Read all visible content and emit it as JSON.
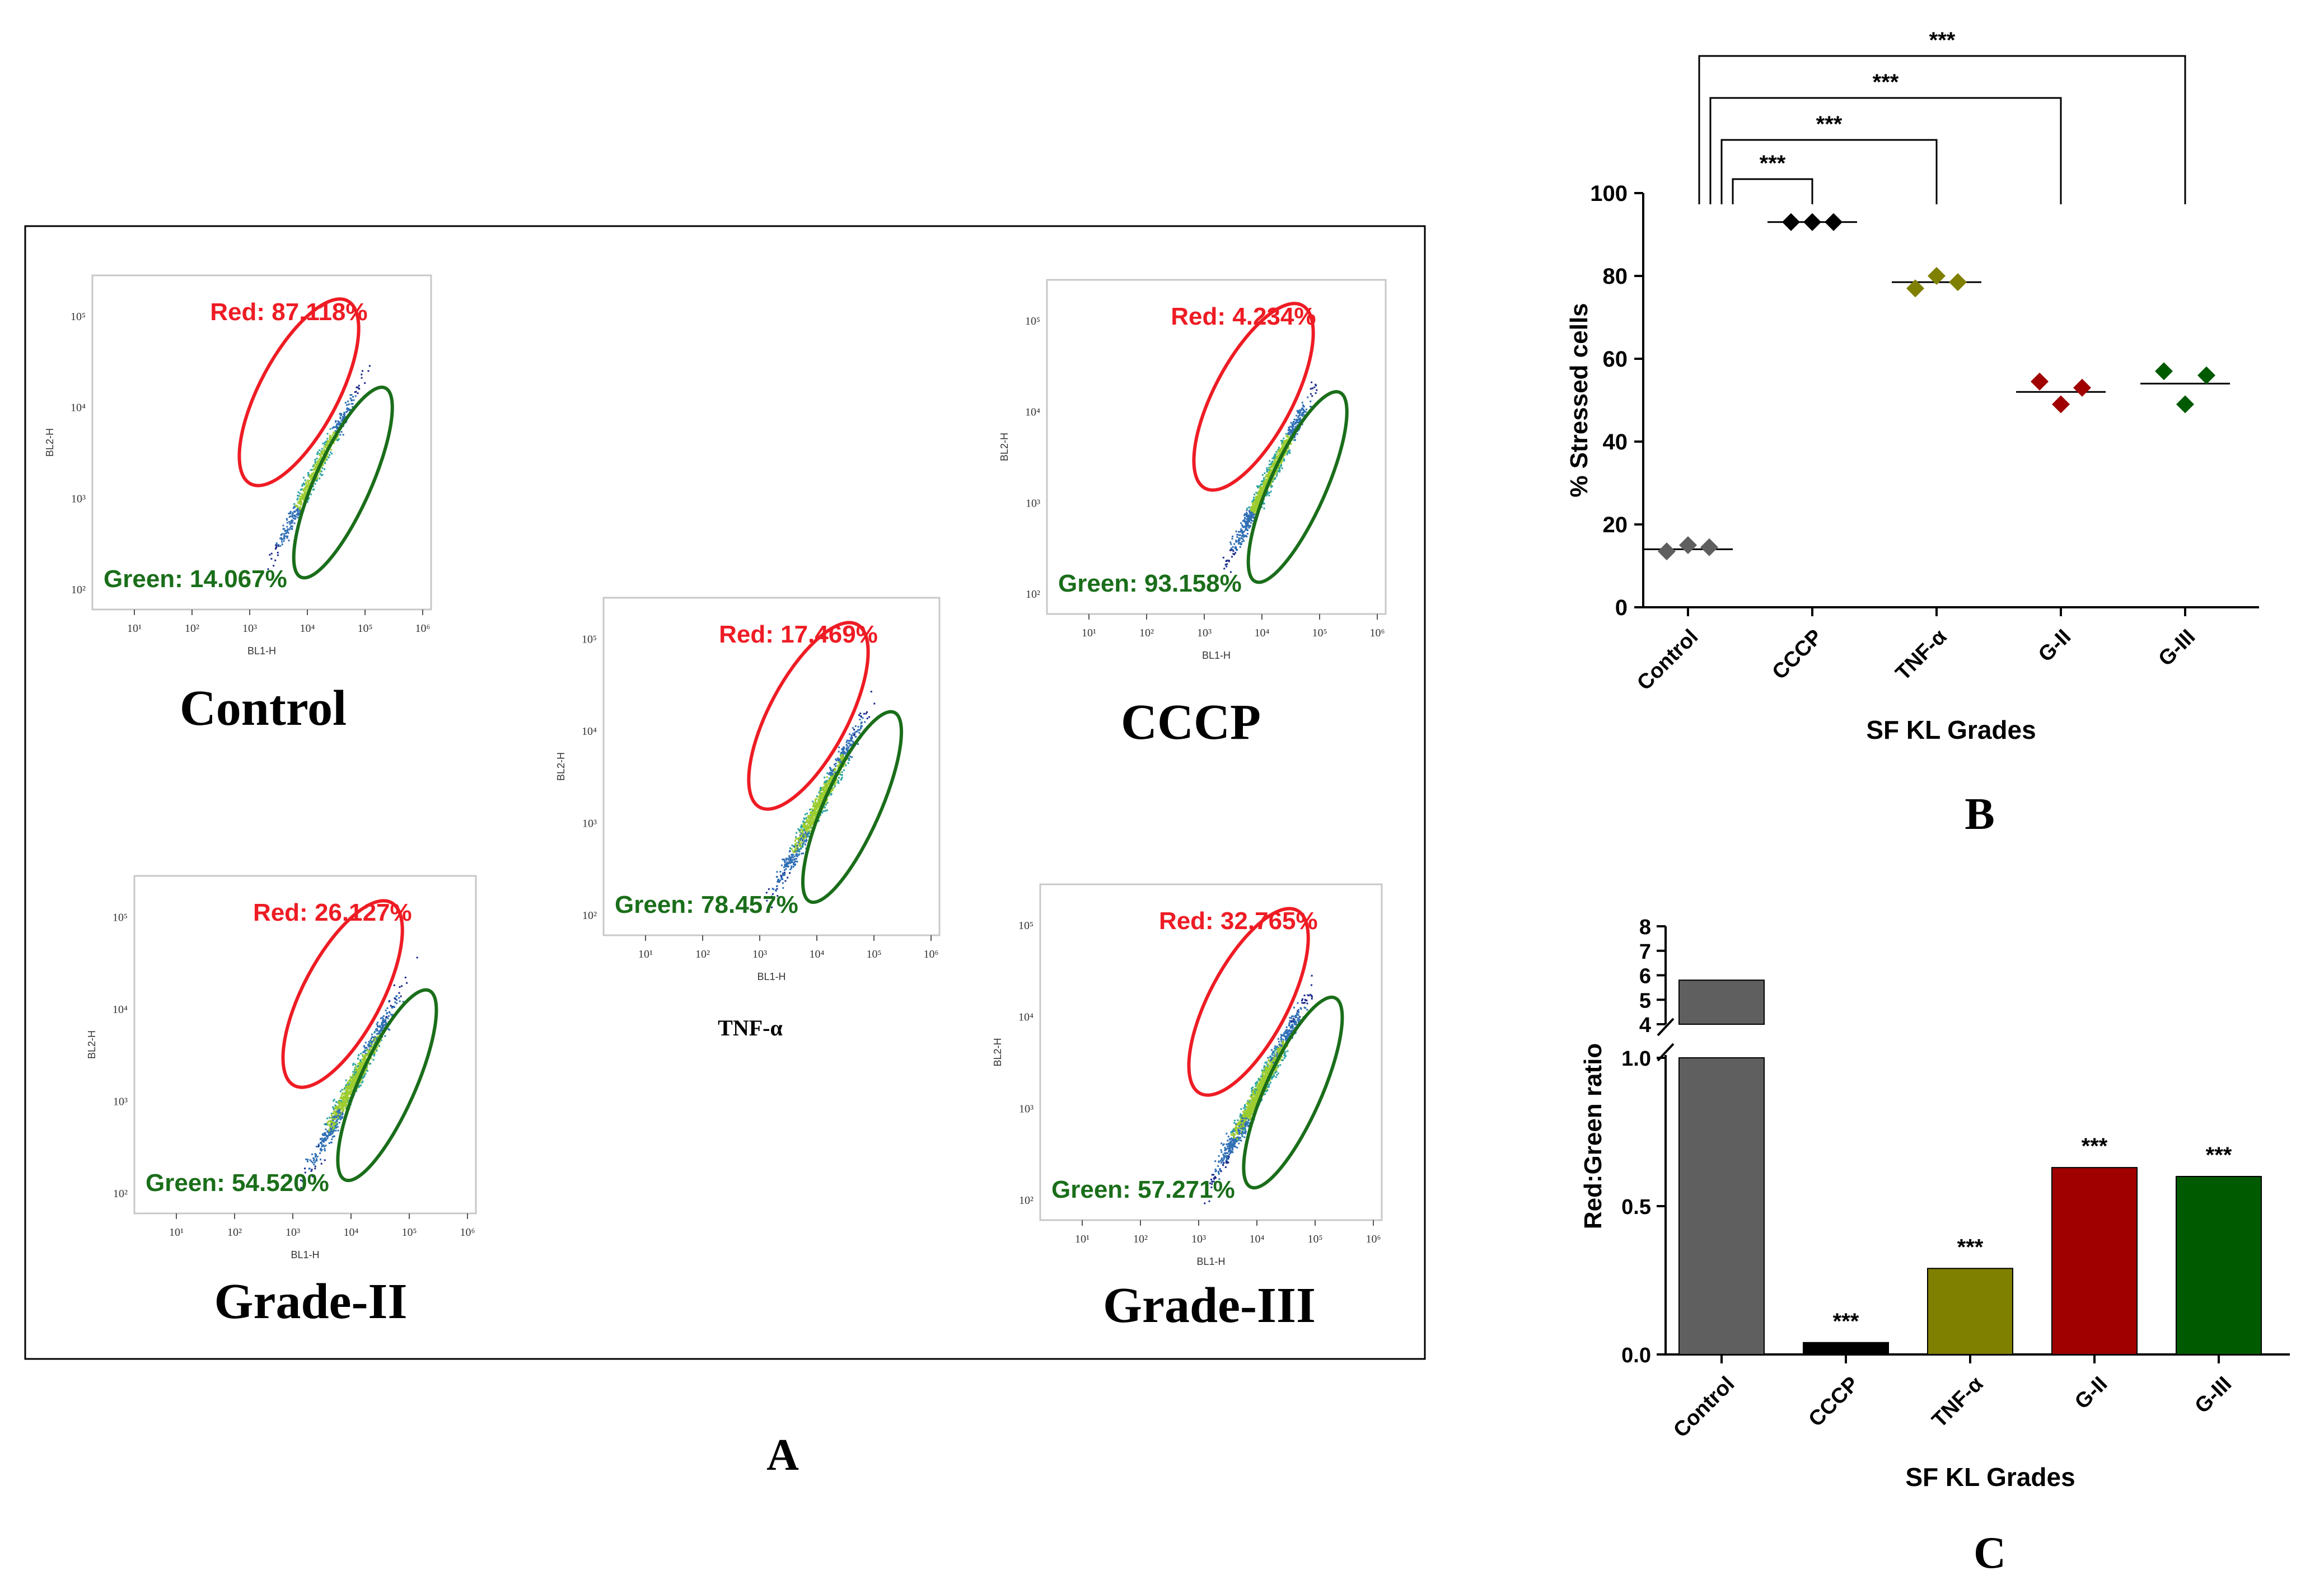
{
  "colors": {
    "red": "#ee1c24",
    "green": "#1a6e1a",
    "axis": "#000000",
    "panel_border": "#000000",
    "control": "#5f5f5f",
    "cccp": "#000000",
    "tnf": "#7f7f00",
    "g2": "#a00000",
    "g3": "#005a00"
  },
  "panel_a": {
    "figure_label": "A",
    "axis_x_label": "BL1-H",
    "axis_y_label": "BL2-H",
    "x_ticks": [
      "10¹",
      "10²",
      "10³",
      "10⁴",
      "10⁵",
      "10⁶"
    ],
    "y_ticks": [
      "10²",
      "10³",
      "10⁴",
      "10⁵"
    ],
    "plots": [
      {
        "name": "Control",
        "red_label": "Red: 87.118%",
        "green_label": "Green: 14.067%",
        "caption": "Control",
        "density": "low"
      },
      {
        "name": "TNF",
        "red_label": "Red: 17.469%",
        "green_label": "Green: 78.457%",
        "caption": "TNF-α",
        "density": "mid"
      },
      {
        "name": "CCCP",
        "red_label": "Red: 4.234%",
        "green_label": "Green: 93.158%",
        "caption": "CCCP",
        "density": "green"
      },
      {
        "name": "Grade-II",
        "red_label": "Red: 26.127%",
        "green_label": "Green: 54.520%",
        "caption": "Grade-II",
        "density": "mid"
      },
      {
        "name": "Grade-III",
        "red_label": "Red: 32.765%",
        "green_label": "Green: 57.271%",
        "caption": "Grade-III",
        "density": "high"
      }
    ]
  },
  "chart_data": [
    {
      "type": "scatter",
      "figure_label": "B",
      "title": "",
      "xlabel": "SF KL Grades",
      "ylabel": "% Stressed cells",
      "ylim": [
        0,
        100
      ],
      "yticks": [
        0,
        20,
        40,
        60,
        80,
        100
      ],
      "categories": [
        "Control",
        "CCCP",
        "TNF-α",
        "G-II",
        "G-III"
      ],
      "series": [
        {
          "name": "Control",
          "values": [
            13.5,
            15,
            14.5
          ],
          "mean": 14
        },
        {
          "name": "CCCP",
          "values": [
            93,
            93,
            93
          ],
          "mean": 93
        },
        {
          "name": "TNF-α",
          "values": [
            77,
            80,
            78.5
          ],
          "mean": 78.5
        },
        {
          "name": "G-II",
          "values": [
            54.5,
            49,
            53
          ],
          "mean": 52
        },
        {
          "name": "G-III",
          "values": [
            57,
            49,
            56
          ],
          "mean": 54
        }
      ],
      "significance": [
        {
          "from": "Control",
          "to": "CCCP",
          "label": "***"
        },
        {
          "from": "Control",
          "to": "TNF-α",
          "label": "***"
        },
        {
          "from": "Control",
          "to": "G-II",
          "label": "***"
        },
        {
          "from": "Control",
          "to": "G-III",
          "label": "***"
        }
      ]
    },
    {
      "type": "bar",
      "figure_label": "C",
      "title": "",
      "xlabel": "SF KL Grades",
      "ylabel": "Red:Green ratio",
      "axis_break": {
        "lower_range": [
          0,
          1.0
        ],
        "upper_range": [
          4,
          8
        ]
      },
      "lower_ticks": [
        "0.0",
        "0.5",
        "1.0"
      ],
      "upper_ticks": [
        "4",
        "5",
        "6",
        "7",
        "8"
      ],
      "categories": [
        "Control",
        "CCCP",
        "TNF-α",
        "G-II",
        "G-III"
      ],
      "values": [
        5.8,
        0.04,
        0.29,
        0.63,
        0.6
      ],
      "significance_labels": [
        "",
        "***",
        "***",
        "***",
        "***"
      ]
    }
  ]
}
